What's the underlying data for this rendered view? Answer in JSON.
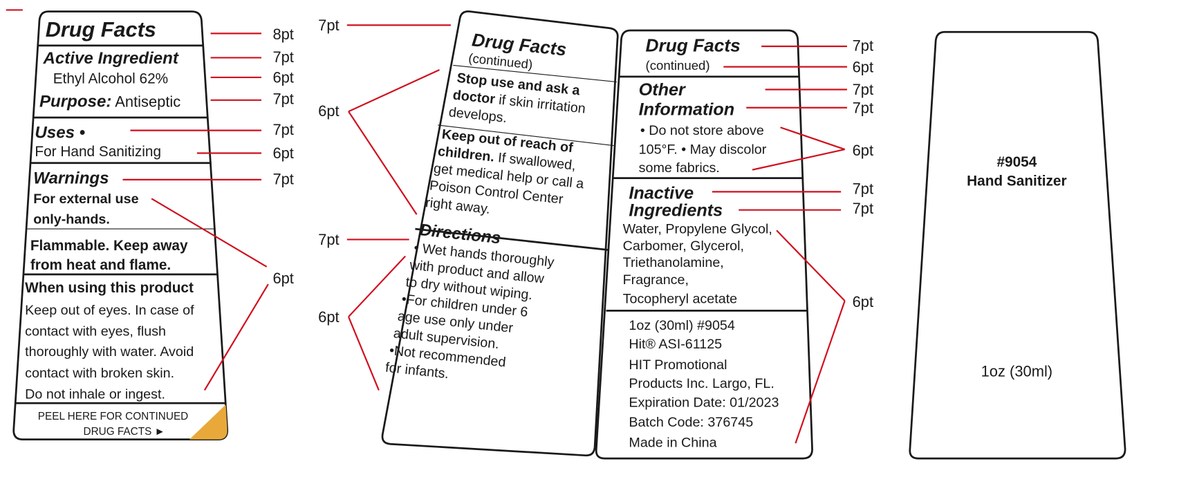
{
  "colors": {
    "annotation": "#d0101e",
    "outline": "#1a1a1a",
    "peel_corner": "#e8a93a"
  },
  "panel1": {
    "title": "Drug Facts",
    "active_heading": "Active Ingredient",
    "active_value": "Ethyl Alcohol 62%",
    "purpose_label": "Purpose:",
    "purpose_value": " Antiseptic",
    "uses_heading": "Uses •",
    "uses_value": "For Hand Sanitizing",
    "warnings_heading": "Warnings",
    "warn_lines": [
      "For external use",
      "only-hands."
    ],
    "flammable_lines": [
      "Flammable.  Keep away",
      "from heat and flame."
    ],
    "when_heading": "When using this product",
    "when_lines": [
      "Keep out of eyes. In case of",
      "contact with eyes, flush",
      "thoroughly with water. Avoid",
      "contact with broken skin.",
      "Do not inhale or ingest."
    ],
    "peel_lines": [
      "PEEL HERE FOR CONTINUED",
      "DRUG FACTS  ►"
    ]
  },
  "panel2": {
    "title": "Drug Facts",
    "subtitle": "(continued)",
    "stop_lines": [
      "Stop use and ask a",
      "doctor",
      " if skin irritation",
      "develops."
    ],
    "keep_lines": [
      "Keep out of reach of",
      "children.",
      " If swallowed,",
      "get medical help or call a",
      "Poison Control Center",
      "right away."
    ],
    "directions_heading": "Directions",
    "directions_lines": [
      "• Wet hands thoroughly",
      "with product and allow",
      "to dry without wiping.",
      "•For children under 6",
      "age use only under",
      "adult supervision.",
      "•Not recommended",
      "for infants."
    ]
  },
  "panel3": {
    "title": "Drug Facts",
    "subtitle": "(continued)",
    "other_heading": [
      "Other",
      "Information"
    ],
    "other_lines": [
      "• Do not store above",
      "105°F.  • May discolor",
      "some fabrics."
    ],
    "inactive_heading": [
      "Inactive",
      "Ingredients"
    ],
    "inactive_lines": [
      "Water, Propylene Glycol,",
      "Carbomer, Glycerol,",
      "Triethanolamine,",
      "Fragrance,",
      "Tocopheryl acetate"
    ],
    "info_lines": [
      "1oz (30ml)  #9054",
      "Hit® ASI-61125",
      "HIT Promotional",
      "Products Inc. Largo, FL.",
      "Expiration Date: 01/2023",
      "Batch Code: 376745",
      "Made in China"
    ]
  },
  "panel4": {
    "item_number": "#9054",
    "product_name": "Hand Sanitizer",
    "size": "1oz (30ml)"
  },
  "annotations": {
    "p1": [
      "8pt",
      "7pt",
      "6pt",
      "7pt",
      "7pt",
      "6pt",
      "7pt",
      "6pt"
    ],
    "p2": [
      "7pt",
      "6pt",
      "7pt",
      "6pt"
    ],
    "p3": [
      "7pt",
      "6pt",
      "7pt",
      "7pt",
      "6pt",
      "7pt",
      "7pt",
      "6pt"
    ]
  }
}
